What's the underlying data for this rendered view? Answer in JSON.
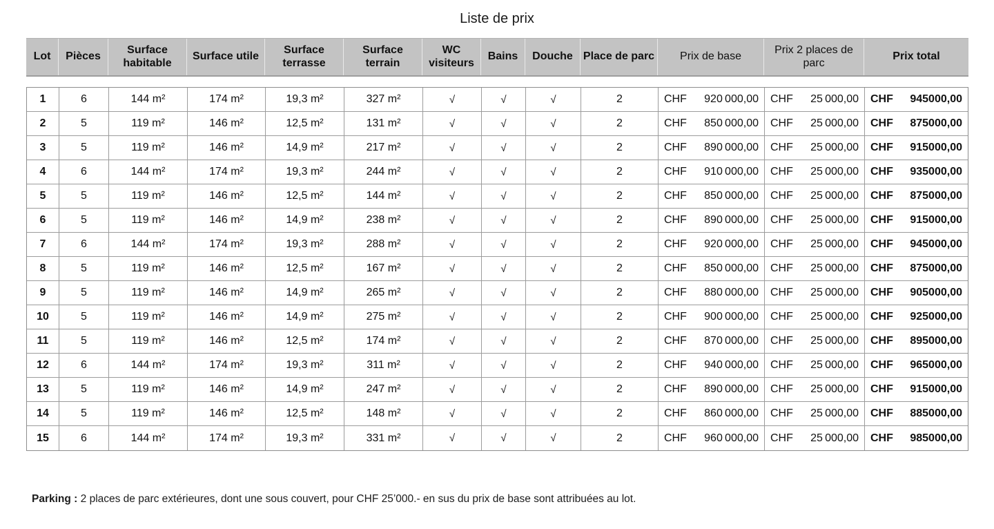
{
  "title": "Liste de prix",
  "table": {
    "currency": "CHF",
    "check_glyph": "√",
    "columns": [
      {
        "id": "lot",
        "label": "Lot"
      },
      {
        "id": "pieces",
        "label": "Pièces"
      },
      {
        "id": "surface-habitable",
        "label": "Surface habitable"
      },
      {
        "id": "surface-utile",
        "label": "Surface utile"
      },
      {
        "id": "surface-terrasse",
        "label": "Surface terrasse"
      },
      {
        "id": "surface-terrain",
        "label": "Surface terrain"
      },
      {
        "id": "wc-visiteurs",
        "label": "WC visiteurs"
      },
      {
        "id": "bains",
        "label": "Bains"
      },
      {
        "id": "douche",
        "label": "Douche"
      },
      {
        "id": "place-de-parc",
        "label": "Place de parc"
      },
      {
        "id": "prix-de-base",
        "label": "Prix de base",
        "currency": true
      },
      {
        "id": "prix-2-places",
        "label": "Prix 2 places de parc",
        "currency": true
      },
      {
        "id": "prix-total",
        "label": "Prix total",
        "currency": true
      }
    ],
    "rows": [
      [
        "1",
        "6",
        "144 m²",
        "174 m²",
        "19,3 m²",
        "327 m²",
        "√",
        "√",
        "√",
        "2",
        "920 000,00",
        "25 000,00",
        "945000,00"
      ],
      [
        "2",
        "5",
        "119 m²",
        "146 m²",
        "12,5 m²",
        "131 m²",
        "√",
        "√",
        "√",
        "2",
        "850 000,00",
        "25 000,00",
        "875000,00"
      ],
      [
        "3",
        "5",
        "119 m²",
        "146 m²",
        "14,9 m²",
        "217 m²",
        "√",
        "√",
        "√",
        "2",
        "890 000,00",
        "25 000,00",
        "915000,00"
      ],
      [
        "4",
        "6",
        "144 m²",
        "174 m²",
        "19,3 m²",
        "244 m²",
        "√",
        "√",
        "√",
        "2",
        "910 000,00",
        "25 000,00",
        "935000,00"
      ],
      [
        "5",
        "5",
        "119 m²",
        "146 m²",
        "12,5 m²",
        "144 m²",
        "√",
        "√",
        "√",
        "2",
        "850 000,00",
        "25 000,00",
        "875000,00"
      ],
      [
        "6",
        "5",
        "119 m²",
        "146 m²",
        "14,9 m²",
        "238 m²",
        "√",
        "√",
        "√",
        "2",
        "890 000,00",
        "25 000,00",
        "915000,00"
      ],
      [
        "7",
        "6",
        "144 m²",
        "174 m²",
        "19,3 m²",
        "288 m²",
        "√",
        "√",
        "√",
        "2",
        "920 000,00",
        "25 000,00",
        "945000,00"
      ],
      [
        "8",
        "5",
        "119 m²",
        "146 m²",
        "12,5 m²",
        "167 m²",
        "√",
        "√",
        "√",
        "2",
        "850 000,00",
        "25 000,00",
        "875000,00"
      ],
      [
        "9",
        "5",
        "119 m²",
        "146 m²",
        "14,9 m²",
        "265 m²",
        "√",
        "√",
        "√",
        "2",
        "880 000,00",
        "25 000,00",
        "905000,00"
      ],
      [
        "10",
        "5",
        "119 m²",
        "146 m²",
        "14,9 m²",
        "275 m²",
        "√",
        "√",
        "√",
        "2",
        "900 000,00",
        "25 000,00",
        "925000,00"
      ],
      [
        "11",
        "5",
        "119 m²",
        "146 m²",
        "12,5 m²",
        "174 m²",
        "√",
        "√",
        "√",
        "2",
        "870 000,00",
        "25 000,00",
        "895000,00"
      ],
      [
        "12",
        "6",
        "144 m²",
        "174 m²",
        "19,3 m²",
        "311 m²",
        "√",
        "√",
        "√",
        "2",
        "940 000,00",
        "25 000,00",
        "965000,00"
      ],
      [
        "13",
        "5",
        "119 m²",
        "146 m²",
        "14,9 m²",
        "247 m²",
        "√",
        "√",
        "√",
        "2",
        "890 000,00",
        "25 000,00",
        "915000,00"
      ],
      [
        "14",
        "5",
        "119 m²",
        "146 m²",
        "12,5 m²",
        "148 m²",
        "√",
        "√",
        "√",
        "2",
        "860 000,00",
        "25 000,00",
        "885000,00"
      ],
      [
        "15",
        "6",
        "144 m²",
        "174 m²",
        "19,3 m²",
        "331 m²",
        "√",
        "√",
        "√",
        "2",
        "960 000,00",
        "25 000,00",
        "985000,00"
      ]
    ]
  },
  "footer": {
    "label": "Parking :",
    "text": "2 places de parc extérieures, dont une sous couvert, pour CHF 25’000.- en sus du prix de base sont attribuées au lot."
  }
}
